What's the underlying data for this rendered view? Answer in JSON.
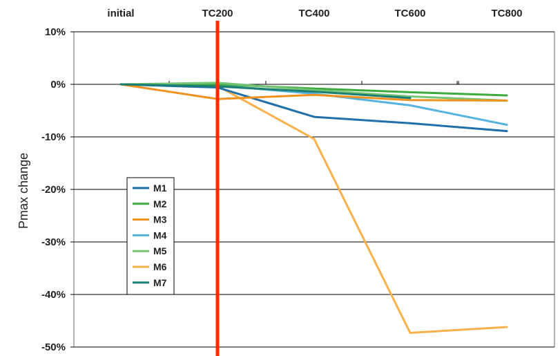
{
  "chart_data": {
    "type": "line",
    "title": "",
    "xlabel": "",
    "ylabel": "Pmax change",
    "categories": [
      "initial",
      "TC200",
      "TC400",
      "TC600",
      "TC800"
    ],
    "y_ticks": [
      "10%",
      "0%",
      "-10%",
      "-20%",
      "-30%",
      "-40%",
      "-50%"
    ],
    "ylim": [
      -50,
      10
    ],
    "y_unit": "%",
    "grid": "horizontal",
    "legend_position": "left",
    "marker": {
      "category": "TC200",
      "color": "#ff2a00"
    },
    "series": [
      {
        "name": "M1",
        "color": "#1f6fa8",
        "values": [
          0,
          -0.6,
          -6.2,
          -7.4,
          -8.9
        ]
      },
      {
        "name": "M2",
        "color": "#3daa3d",
        "values": [
          0,
          0.0,
          -0.8,
          -1.5,
          -2.1
        ]
      },
      {
        "name": "M3",
        "color": "#f0901e",
        "values": [
          0,
          -2.8,
          -2.0,
          -3.0,
          -3.1
        ]
      },
      {
        "name": "M4",
        "color": "#56b3e0",
        "values": [
          0,
          -0.2,
          -1.8,
          -4.0,
          -7.7
        ]
      },
      {
        "name": "M5",
        "color": "#74c476",
        "values": [
          0,
          0.3,
          -1.1,
          -2.3,
          -3.1
        ]
      },
      {
        "name": "M6",
        "color": "#f7b04a",
        "values": [
          0,
          -0.3,
          -10.4,
          -47.3,
          -46.2
        ]
      },
      {
        "name": "M7",
        "color": "#1a7f72",
        "values": [
          0,
          -0.4,
          -1.4,
          -2.6,
          null
        ]
      }
    ]
  }
}
